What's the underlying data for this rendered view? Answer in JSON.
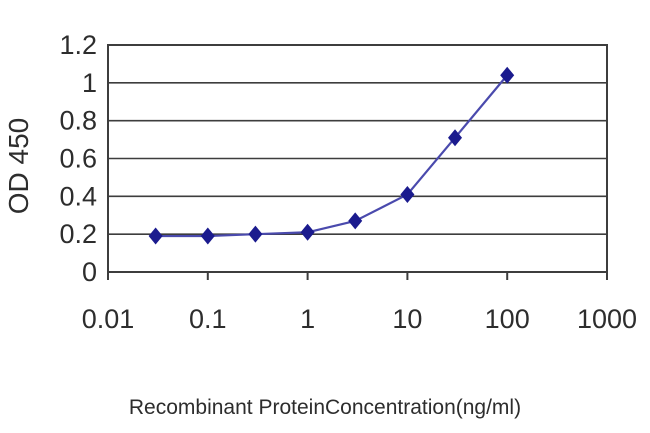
{
  "chart_data": {
    "type": "line",
    "title": "",
    "xlabel": "Recombinant ProteinConcentration(ng/ml)",
    "ylabel": "OD 450",
    "x_scale": "log",
    "xlim": [
      0.01,
      1000
    ],
    "ylim": [
      0,
      1.2
    ],
    "x_tick_labels": [
      "0.01",
      "0.1",
      "1",
      "10",
      "100",
      "1000"
    ],
    "x_tick_values": [
      0.01,
      0.1,
      1,
      10,
      100,
      1000
    ],
    "y_tick_labels": [
      "0",
      "0.2",
      "0.4",
      "0.6",
      "0.8",
      "1",
      "1.2"
    ],
    "y_tick_values": [
      0,
      0.2,
      0.4,
      0.6,
      0.8,
      1,
      1.2
    ],
    "grid": "horizontal",
    "legend": "none",
    "marker": "diamond",
    "x": [
      0.03,
      0.1,
      0.3,
      1,
      3,
      10,
      30,
      100
    ],
    "series": [
      {
        "name": "OD 450",
        "values": [
          0.19,
          0.19,
          0.2,
          0.21,
          0.27,
          0.41,
          0.71,
          1.04
        ]
      }
    ],
    "colors": {
      "line": "#4a4aad",
      "marker": "#1b1b8e",
      "grid": "#3d3d3d",
      "axis": "#3d3d3d",
      "text": "#2d2d2d",
      "background": "#ffffff"
    }
  }
}
